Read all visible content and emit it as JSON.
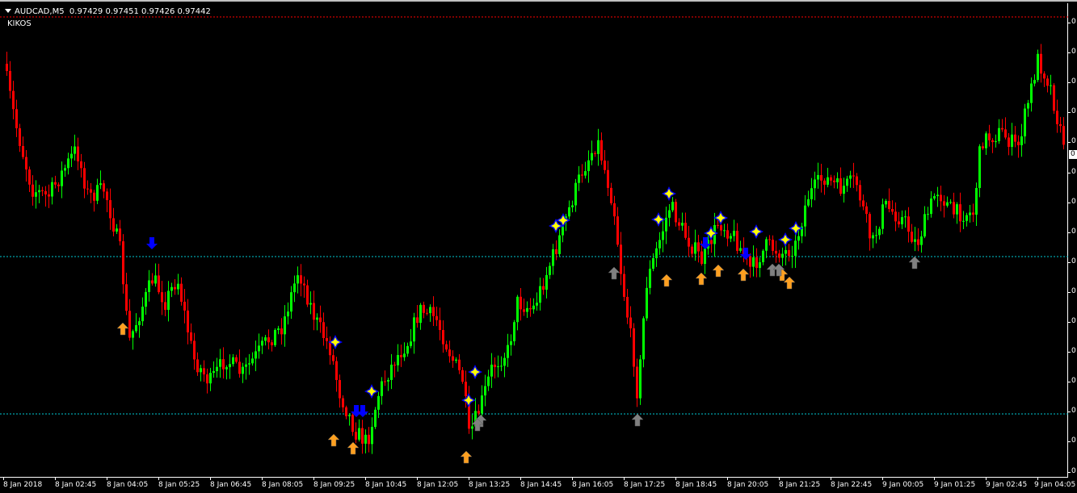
{
  "header": {
    "symbol": "AUDCAD,M5",
    "ohlc": "0.97429 0.97451 0.97426 0.97442"
  },
  "indicator": {
    "name": "KIKOS"
  },
  "price_axis": {
    "labels": [
      "0",
      "0",
      "0",
      "0",
      "0",
      "0",
      "0",
      "0",
      "0",
      "0",
      "0",
      "0",
      "0",
      "0",
      "0",
      "0"
    ],
    "current_price": "0"
  },
  "time_axis": {
    "labels": [
      "8 Jan 2018",
      "8 Jan 02:45",
      "8 Jan 04:05",
      "8 Jan 05:25",
      "8 Jan 06:45",
      "8 Jan 08:05",
      "8 Jan 09:25",
      "8 Jan 10:45",
      "8 Jan 12:05",
      "8 Jan 13:25",
      "8 Jan 14:45",
      "8 Jan 16:05",
      "8 Jan 17:25",
      "8 Jan 18:45",
      "8 Jan 20:05",
      "8 Jan 21:25",
      "8 Jan 22:45",
      "9 Jan 00:05",
      "9 Jan 01:25",
      "9 Jan 02:45",
      "9 Jan 04:05"
    ]
  },
  "colors": {
    "background": "#000000",
    "bull_candle": "#00ff00",
    "bear_candle": "#ff0000",
    "level_line": "#00c8d2",
    "ask_line": "#ff0000",
    "signal_sell": "#0000ff",
    "signal_star": "#ffff00",
    "signal_buy": "#ffa020",
    "signal_neutral": "#808080"
  }
}
